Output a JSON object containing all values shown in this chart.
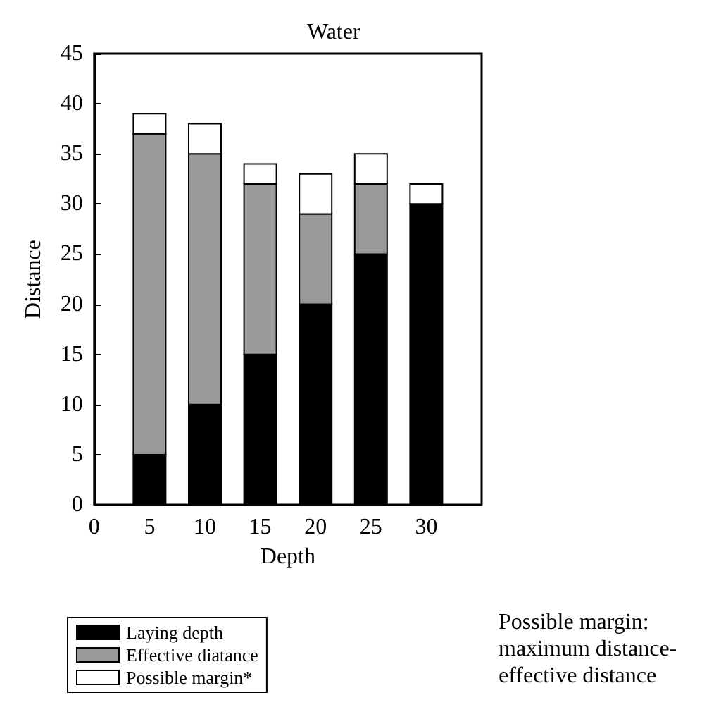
{
  "chart_data": {
    "type": "bar",
    "title": "Water",
    "xlabel": "Depth",
    "ylabel": "Distance",
    "stacked": true,
    "x": [
      5,
      10,
      15,
      20,
      25,
      30
    ],
    "series": [
      {
        "name": "Laying depth",
        "color": "#000000",
        "values": [
          5,
          10,
          15,
          20,
          25,
          30
        ]
      },
      {
        "name": "Effective diatance",
        "color": "#9a9a9a",
        "values": [
          32,
          25,
          17,
          9,
          7,
          0
        ]
      },
      {
        "name": "Possible margin*",
        "color": "#ffffff",
        "values": [
          2,
          3,
          2,
          4,
          3,
          2
        ]
      }
    ],
    "xlim": [
      0,
      35
    ],
    "xticks": [
      0,
      5,
      10,
      15,
      20,
      25,
      30
    ],
    "ylim": [
      0,
      45
    ],
    "yticks": [
      0,
      5,
      10,
      15,
      20,
      25,
      30,
      35,
      40,
      45
    ],
    "grid": false,
    "legend": "bottom left",
    "annotations": [
      "Possible margin: maximum distance-effective distance"
    ]
  }
}
